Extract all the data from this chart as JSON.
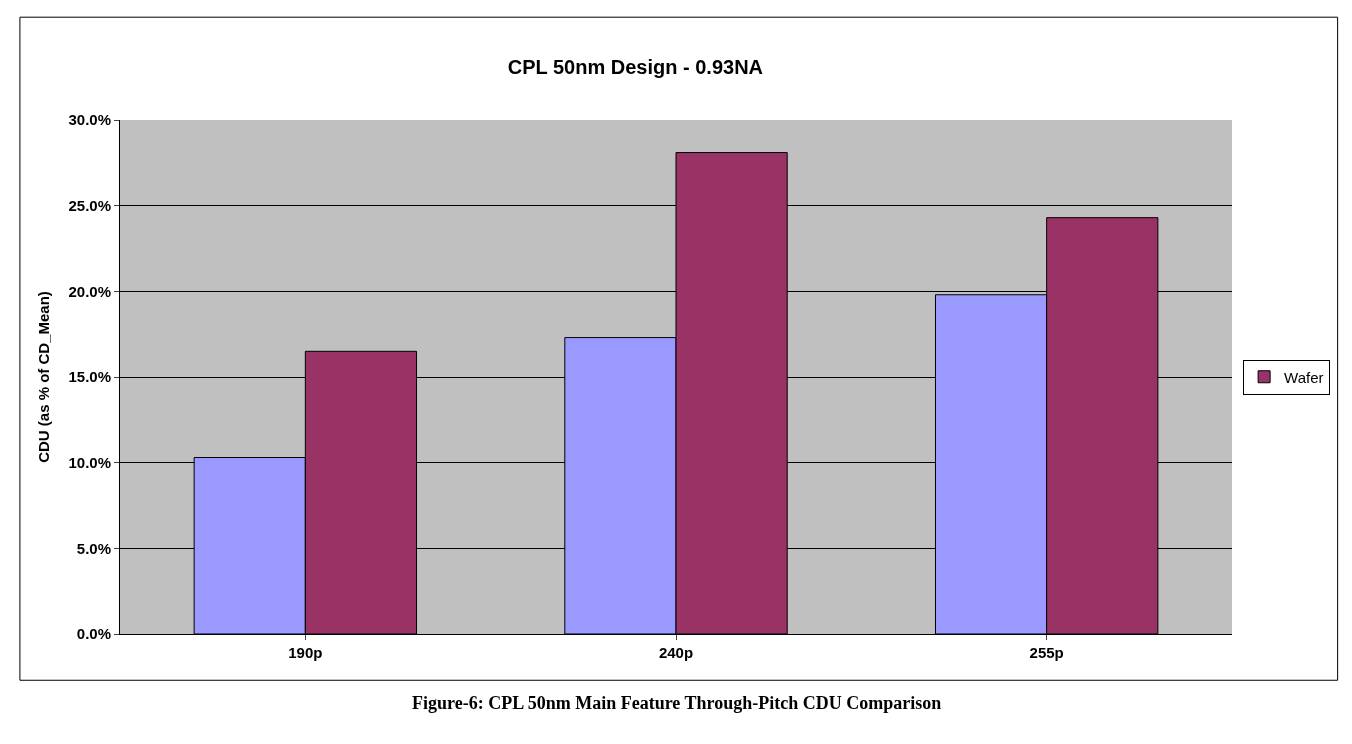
{
  "chart_data": {
    "type": "bar",
    "title": "CPL 50nm Design - 0.93NA",
    "ylabel": "CDU (as % of CD_Mean)",
    "categories": [
      "190p",
      "240p",
      "255p"
    ],
    "series": [
      {
        "color": "#9999ff",
        "values": [
          10.3,
          17.3,
          19.8
        ]
      },
      {
        "name": "Wafer",
        "color": "#993366",
        "values": [
          16.5,
          28.1,
          24.3
        ]
      }
    ],
    "ylim": [
      0,
      30
    ],
    "yticks": [
      {
        "value": 0,
        "label": "0.0%"
      },
      {
        "value": 5,
        "label": "5.0%"
      },
      {
        "value": 10,
        "label": "10.0%"
      },
      {
        "value": 15,
        "label": "15.0%"
      },
      {
        "value": 20,
        "label": "20.0%"
      },
      {
        "value": 25,
        "label": "25.0%"
      },
      {
        "value": 30,
        "label": "30.0%"
      }
    ],
    "grid": "y",
    "legend": "right",
    "annotations": [
      "Figure-6: CPL 50nm Main Feature Through-Pitch CDU Comparison"
    ]
  }
}
